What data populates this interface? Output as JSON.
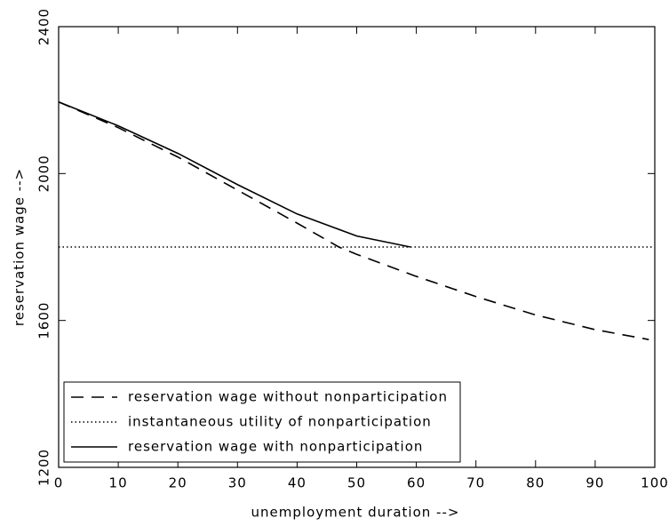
{
  "chart_data": {
    "type": "line",
    "xlabel": "unemployment duration -->",
    "ylabel": "reservation wage -->",
    "xlim": [
      0,
      100
    ],
    "xticks": [
      0,
      10,
      20,
      30,
      40,
      50,
      60,
      70,
      80,
      90,
      100
    ],
    "ylim": [
      1200,
      2400
    ],
    "yticks": [
      1200,
      1600,
      2000,
      2400
    ],
    "legend": "lower left",
    "series": [
      {
        "name": "reservation wage without nonparticipation",
        "color": "#000000",
        "dash": "dashed",
        "x": [
          0,
          10,
          20,
          30,
          40,
          47,
          50,
          60,
          70,
          80,
          90,
          99
        ],
        "values": [
          2195,
          2125,
          2045,
          1955,
          1865,
          1800,
          1780,
          1720,
          1665,
          1615,
          1575,
          1548
        ]
      },
      {
        "name": "instantaneous utility of nonparticipation",
        "color": "#000000",
        "dash": "dotted",
        "x": [
          0,
          100
        ],
        "values": [
          1800,
          1800
        ]
      },
      {
        "name": "reservation wage with nonparticipation",
        "color": "#000000",
        "dash": "solid",
        "x": [
          0,
          10,
          20,
          30,
          40,
          50,
          59
        ],
        "values": [
          2195,
          2130,
          2055,
          1970,
          1890,
          1830,
          1800
        ]
      }
    ]
  }
}
